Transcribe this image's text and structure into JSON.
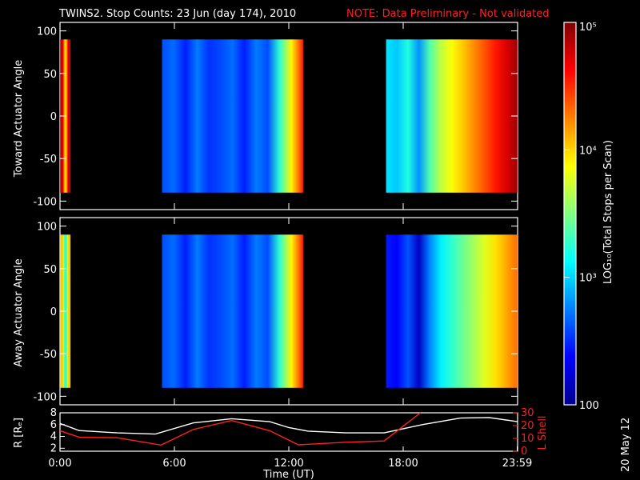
{
  "title": "TWINS2. Stop Counts: 23 Jun (day 174), 2010",
  "note": "NOTE: Data Preliminary - Not validated",
  "date_stamp": "20 May 12",
  "colors": {
    "background": "#000000",
    "axes": "#ffffff",
    "note": "#ff2020",
    "r_line": "#ffffff",
    "lshell_line": "#ff2020"
  },
  "chart_data": [
    {
      "type": "heatmap",
      "name": "toward",
      "ylabel": "Toward Actuator Angle",
      "ylim": [
        -110,
        110
      ],
      "yticks": [
        "100",
        "50",
        "0",
        "-50",
        "-100"
      ],
      "xlim_hours": [
        0,
        24
      ],
      "angle_range": [
        -90,
        90
      ],
      "blocks": [
        {
          "start_h": 0.0,
          "end_h": 0.55,
          "level": 0.8
        },
        {
          "start_h": 5.35,
          "end_h": 12.75,
          "level": 0.2
        },
        {
          "start_h": 17.1,
          "end_h": 23.99,
          "level": 0.55
        }
      ]
    },
    {
      "type": "heatmap",
      "name": "away",
      "ylabel": "Away Actuator Angle",
      "ylim": [
        -110,
        110
      ],
      "yticks": [
        "100",
        "50",
        "0",
        "-50",
        "-100"
      ],
      "xlim_hours": [
        0,
        24
      ],
      "angle_range": [
        -90,
        90
      ],
      "blocks": [
        {
          "start_h": 0.0,
          "end_h": 0.55,
          "level": 0.55
        },
        {
          "start_h": 5.35,
          "end_h": 12.75,
          "level": 0.2
        },
        {
          "start_h": 17.1,
          "end_h": 23.99,
          "level": 0.35
        }
      ]
    },
    {
      "type": "line",
      "name": "orbit",
      "ylabel_left": "R [Rₑ]",
      "ylabel_right": "L Shell",
      "yticks_left": [
        "8",
        "6",
        "4",
        "2"
      ],
      "yticks_right": [
        "30",
        "20",
        "10",
        "0"
      ],
      "ylim_left": [
        1.5,
        8
      ],
      "ylim_right": [
        0,
        30
      ],
      "xlabel": "Time (UT)",
      "xtick_labels": [
        "0:00",
        "6:00",
        "12:00",
        "18:00",
        "23:59"
      ],
      "xtick_hours": [
        0,
        6,
        12,
        18,
        23.98
      ],
      "series": [
        {
          "key": "R",
          "axis": "left",
          "x": [
            0,
            1,
            3,
            5,
            7,
            9,
            11,
            12,
            13,
            15,
            17,
            19,
            21,
            22.5,
            24
          ],
          "y": [
            6.2,
            5.0,
            4.6,
            4.4,
            6.3,
            7.0,
            6.5,
            5.5,
            4.9,
            4.6,
            4.6,
            6.0,
            7.1,
            7.2,
            6.5
          ]
        },
        {
          "key": "L",
          "axis": "right",
          "x": [
            0,
            1,
            3,
            5.3,
            7,
            9,
            11,
            12.5,
            15,
            17,
            18.9
          ],
          "y": [
            16,
            11,
            10.5,
            4.8,
            17,
            24,
            16,
            5.0,
            7,
            8,
            30
          ]
        }
      ]
    },
    {
      "type": "colorbar",
      "label": "LOG₁₀(Total Stops per Scan)",
      "tick_labels": [
        "10⁵",
        "10⁴",
        "10³",
        "100"
      ],
      "tick_values": [
        100000,
        10000,
        1000,
        100
      ],
      "scale": "log"
    }
  ]
}
